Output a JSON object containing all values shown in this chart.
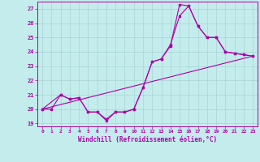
{
  "xlabel": "Windchill (Refroidissement éolien,°C)",
  "xlim": [
    -0.5,
    23.5
  ],
  "ylim": [
    18.8,
    27.5
  ],
  "yticks": [
    19,
    20,
    21,
    22,
    23,
    24,
    25,
    26,
    27
  ],
  "xticks": [
    0,
    1,
    2,
    3,
    4,
    5,
    6,
    7,
    8,
    9,
    10,
    11,
    12,
    13,
    14,
    15,
    16,
    17,
    18,
    19,
    20,
    21,
    22,
    23
  ],
  "bg_color": "#c4ecec",
  "line_color": "#aa00aa",
  "grid_color": "#aad4d4",
  "line1_x": [
    0,
    1,
    2,
    3,
    4,
    5,
    6,
    7,
    8,
    9,
    10,
    11,
    12,
    13,
    14,
    15,
    16,
    17,
    18,
    19,
    20,
    21,
    22,
    23
  ],
  "line1_y": [
    20.0,
    20.0,
    21.0,
    20.7,
    20.8,
    19.8,
    19.8,
    19.2,
    19.8,
    19.8,
    20.0,
    21.5,
    23.3,
    23.5,
    24.4,
    27.3,
    27.2,
    25.8,
    25.0,
    25.0,
    24.0,
    23.9,
    23.8,
    23.7
  ],
  "line2_x": [
    0,
    23
  ],
  "line2_y": [
    20.0,
    23.7
  ],
  "line3_x": [
    0,
    2,
    3,
    4,
    5,
    6,
    7,
    8,
    9,
    10,
    11,
    12,
    13,
    14,
    15,
    16,
    17,
    18,
    19,
    20,
    21,
    22,
    23
  ],
  "line3_y": [
    20.0,
    21.0,
    20.7,
    20.8,
    19.8,
    19.8,
    19.3,
    19.8,
    19.8,
    20.0,
    21.5,
    23.3,
    23.5,
    24.5,
    26.5,
    27.2,
    25.8,
    25.0,
    25.0,
    24.0,
    23.9,
    23.8,
    23.7
  ],
  "marker_size": 2.0,
  "line_width": 0.8
}
